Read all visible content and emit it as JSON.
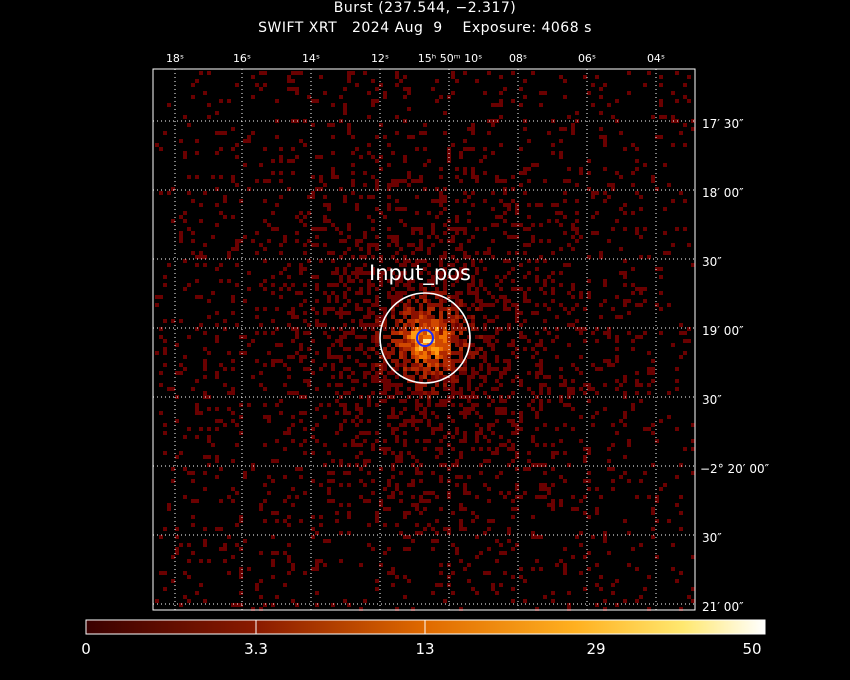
{
  "title": "Burst (237.544, −2.317)",
  "subtitle": "SWIFT XRT   2024 Aug  9    Exposure: 4068 s",
  "ra_labels": [
    "18ˢ",
    "16ˢ",
    "14ˢ",
    "12ˢ",
    "15ʰ 50ᵐ 10ˢ",
    "08ˢ",
    "06ˢ",
    "04ˢ"
  ],
  "dec_labels": [
    "17′ 30″",
    "18′ 00″",
    "30″",
    "19′ 00″",
    "30″",
    "−2° 20′ 00″",
    "30″",
    "21′ 00″"
  ],
  "source_label": "Input_pos",
  "colorbar": {
    "labels": [
      "0",
      "3.3",
      "13",
      "29",
      "50"
    ],
    "colors": [
      "#5a0000",
      "#8b1a00",
      "#d05000",
      "#ff9a00",
      "#ffe870",
      "#ffffff"
    ]
  },
  "colors": {
    "background": "#000000",
    "grid": "#ffffff",
    "source_region": "#ffffff",
    "position_marker": "#1a2cff"
  }
}
